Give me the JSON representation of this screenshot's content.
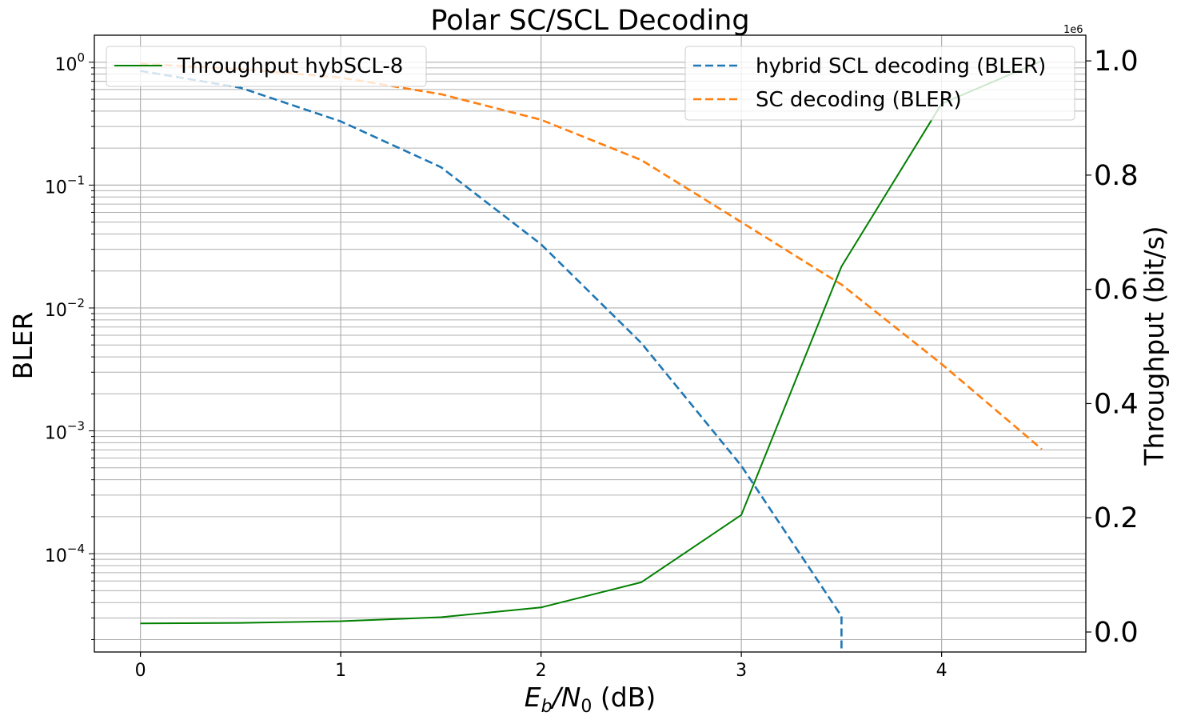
{
  "chart_data": {
    "type": "line",
    "title": "Polar SC/SCL Decoding",
    "xlabel_base": "E",
    "xlabel_sub1": "b",
    "xlabel_mid": "/N",
    "xlabel_sub2": "0",
    "xlabel_unit": " (dB)",
    "ylabel_left": "BLER",
    "ylabel_right": "Throughput (bit/s)",
    "right_axis_offset": "1e6",
    "xlim": [
      -0.23,
      4.72
    ],
    "ylim_left_log10": [
      -4.8,
      0.22
    ],
    "ylim_right": [
      -0.035,
      1.045
    ],
    "x_ticks": [
      "0",
      "1",
      "2",
      "3",
      "4"
    ],
    "left_ticks": [
      {
        "base": "10",
        "exp": "0"
      },
      {
        "base": "10",
        "exp": "−1"
      },
      {
        "base": "10",
        "exp": "−2"
      },
      {
        "base": "10",
        "exp": "−3"
      },
      {
        "base": "10",
        "exp": "−4"
      }
    ],
    "right_ticks": [
      "0.0",
      "0.2",
      "0.4",
      "0.6",
      "0.8",
      "1.0"
    ],
    "grid": true,
    "legend_left_placement": "upper-left",
    "legend_right_placement": "upper-right",
    "series": [
      {
        "name": "hybrid SCL decoding (BLER)",
        "axis": "left",
        "style": "dashed",
        "color": "#1f77b4",
        "x": [
          0,
          0.5,
          1,
          1.5,
          2,
          2.5,
          3,
          3.5,
          3.5
        ],
        "y": [
          0.85,
          0.62,
          0.33,
          0.14,
          0.033,
          0.0052,
          0.00052,
          3.1e-05,
          1.58e-05
        ]
      },
      {
        "name": "SC decoding (BLER)",
        "axis": "left",
        "style": "dashed",
        "color": "#ff7f0e",
        "x": [
          0,
          0.5,
          1,
          1.5,
          2,
          2.5,
          3,
          3.5,
          4,
          4.5
        ],
        "y": [
          0.97,
          0.88,
          0.75,
          0.55,
          0.34,
          0.16,
          0.05,
          0.0155,
          0.0035,
          0.00071
        ]
      },
      {
        "name": "Throughput hybSCL-8",
        "axis": "right",
        "style": "solid",
        "color": "#008000",
        "x": [
          0,
          0.5,
          1,
          1.5,
          2,
          2.5,
          3,
          3.5,
          4,
          4.5
        ],
        "y": [
          0.015,
          0.016,
          0.019,
          0.026,
          0.043,
          0.087,
          0.205,
          0.64,
          0.925,
          1.0
        ]
      }
    ]
  }
}
